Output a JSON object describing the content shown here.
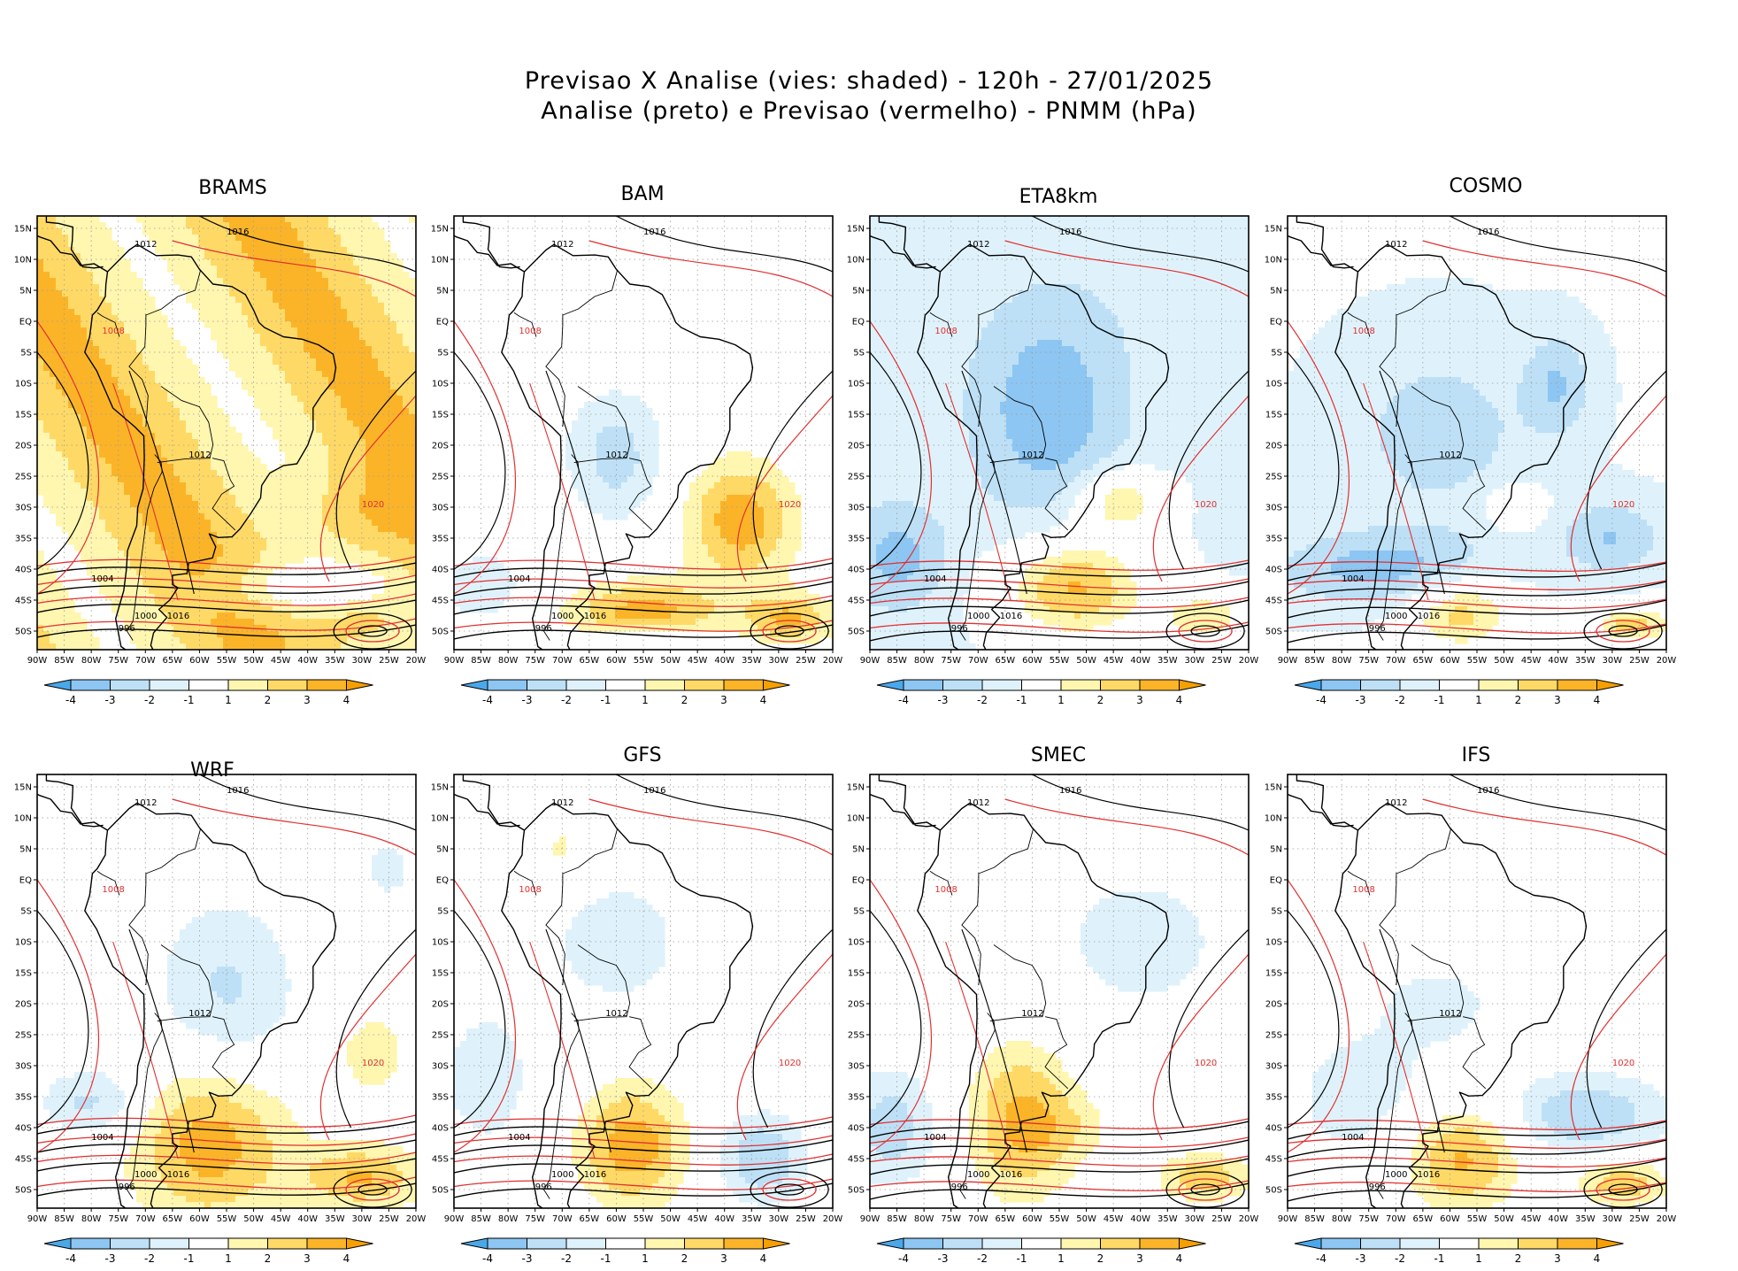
{
  "title_line1": "Previsao X Analise (vies: shaded) - 120h - 27/01/2025",
  "title_line2": "Analise (preto) e Previsao (vermelho) - PNMM (hPa)",
  "lat_labels": [
    "15N",
    "10N",
    "5N",
    "EQ",
    "5S",
    "10S",
    "15S",
    "20S",
    "25S",
    "30S",
    "35S",
    "40S",
    "45S",
    "50S"
  ],
  "lon_labels": [
    "90W",
    "85W",
    "80W",
    "75W",
    "70W",
    "65W",
    "60W",
    "55W",
    "50W",
    "45W",
    "40W",
    "35W",
    "30W",
    "25W",
    "20W"
  ],
  "colorbar": {
    "labels": [
      "-4",
      "-3",
      "-2",
      "-1",
      "1",
      "2",
      "3",
      "4"
    ],
    "colors": [
      "#4aa8ea",
      "#8dc6f2",
      "#bde0f6",
      "#dff2fb",
      "#ffffff",
      "#fff6b0",
      "#ffd966",
      "#fbb428",
      "#f6a000"
    ]
  },
  "colors": {
    "analysis_contour": "#000000",
    "forecast_contour": "#e03030",
    "warm_bias": "#fbb428",
    "cold_bias": "#5fb2ec"
  },
  "panels": [
    {
      "name": "BRAMS",
      "bias": "warm",
      "labels": [
        "1012",
        "1016",
        "1008",
        "1012",
        "1020",
        "1016",
        "1004",
        "1000",
        "996"
      ]
    },
    {
      "name": "BAM",
      "bias": "mixed",
      "labels": [
        "1012",
        "1016",
        "1008",
        "1012",
        "1020",
        "1016",
        "1004",
        "1000",
        "996"
      ]
    },
    {
      "name": "ETA8km",
      "bias": "cold",
      "labels": [
        "1012",
        "1016",
        "1008",
        "1012",
        "1020",
        "1016",
        "1004",
        "1000",
        "996"
      ]
    },
    {
      "name": "COSMO",
      "bias": "mixed",
      "labels": [
        "1012",
        "1016",
        "1008",
        "1012",
        "1020",
        "1016",
        "1004",
        "1000",
        "996"
      ]
    },
    {
      "name": "WRF",
      "bias": "mixed",
      "labels": [
        "1012",
        "1016",
        "1008",
        "1012",
        "1020",
        "1016",
        "1004",
        "1000",
        "996"
      ]
    },
    {
      "name": "GFS",
      "bias": "mixed",
      "labels": [
        "1012",
        "1016",
        "1008",
        "1012",
        "1020",
        "1016",
        "1004",
        "1000",
        "996"
      ]
    },
    {
      "name": "SMEC",
      "bias": "mixed",
      "labels": [
        "1012",
        "1016",
        "1008",
        "1012",
        "1020",
        "1016",
        "1004",
        "1000",
        "996"
      ]
    },
    {
      "name": "IFS",
      "bias": "mixed",
      "labels": [
        "1012",
        "1016",
        "1008",
        "1012",
        "1020",
        "1016",
        "1004",
        "1000",
        "996"
      ]
    }
  ]
}
